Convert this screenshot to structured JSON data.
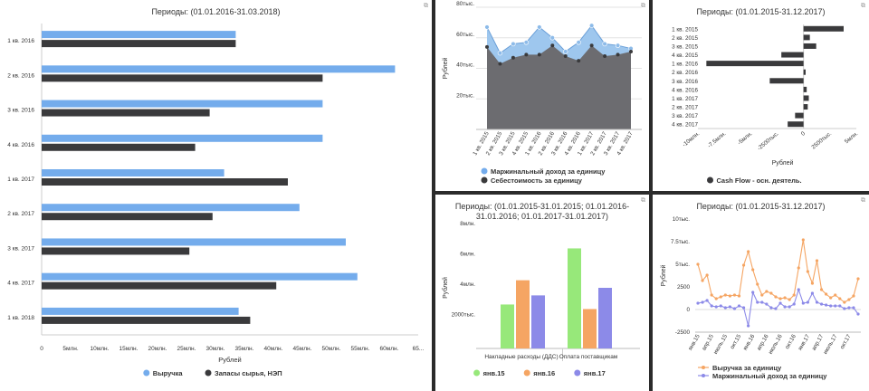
{
  "colors": {
    "blue": "#74acec",
    "dark": "#3a3a3c",
    "area_light": "#9ec7ee",
    "area_dark": "#6c6c70",
    "green": "#97e87a",
    "orange": "#f5a563",
    "purple": "#8c8ae8",
    "line_orange": "#f5a563",
    "line_purple": "#8c8ae8",
    "icon": "expand-icon"
  },
  "chart_data": [
    {
      "id": "c1",
      "type": "bar",
      "orientation": "horizontal",
      "title": "Периоды: (01.01.2016-31.03.2018)",
      "xlabel": "Рублей",
      "ylabel": "",
      "xlim": [
        0,
        65
      ],
      "xticks": [
        "0",
        "5млн.",
        "10млн.",
        "15млн.",
        "20млн.",
        "25млн.",
        "30млн.",
        "35млн.",
        "40млн.",
        "45млн.",
        "50млн.",
        "55млн.",
        "60млн.",
        "65..."
      ],
      "categories": [
        "1 кв. 2016",
        "2 кв. 2016",
        "3 кв. 2016",
        "4 кв. 2016",
        "1 кв. 2017",
        "2 кв. 2017",
        "3 кв. 2017",
        "4 кв. 2017",
        "1 кв. 2018"
      ],
      "series": [
        {
          "name": "Выручка",
          "values": [
            33.5,
            61,
            48.5,
            48.5,
            31.5,
            44.5,
            52.5,
            54.5,
            34
          ]
        },
        {
          "name": "Запасы сырья, НЭП",
          "values": [
            33.5,
            48.5,
            29,
            26.5,
            42.5,
            29.5,
            25.5,
            40.5,
            36
          ]
        }
      ],
      "legend": "bottom"
    },
    {
      "id": "c2",
      "type": "area",
      "title": "",
      "ylabel": "Рублей",
      "xlabel": "",
      "ylim": [
        0,
        80
      ],
      "yticks": [
        {
          "v": 20,
          "t": "20тыс."
        },
        {
          "v": 40,
          "t": "40тыс."
        },
        {
          "v": 60,
          "t": "60тыс."
        },
        {
          "v": 80,
          "t": "80тыс."
        }
      ],
      "categories": [
        "1 кв. 2015",
        "2 кв. 2015",
        "3 кв. 2015",
        "4 кв. 2015",
        "1 кв. 2016",
        "2 кв. 2016",
        "3 кв. 2016",
        "4 кв. 2016",
        "1 кв. 2017",
        "2 кв. 2017",
        "3 кв. 2017",
        "4 кв. 2017"
      ],
      "series": [
        {
          "name": "Маржинальный доход за единицу",
          "values": [
            67,
            50,
            56,
            57,
            67,
            60,
            51,
            57,
            68,
            56,
            55,
            53
          ]
        },
        {
          "name": "Себестоимость за единицу",
          "values": [
            54,
            43,
            47,
            49,
            49,
            55,
            48,
            45,
            55,
            48,
            49,
            51
          ]
        }
      ],
      "legend": "bottom"
    },
    {
      "id": "c3",
      "type": "bar",
      "orientation": "horizontal",
      "title": "Периоды: (01.01.2015-31.12.2017)",
      "xlabel": "Рублей",
      "ylabel": "",
      "xlim": [
        -10,
        5
      ],
      "xticks": [
        {
          "v": -10,
          "t": "-10млн."
        },
        {
          "v": -7.5,
          "t": "-7.5млн."
        },
        {
          "v": -5,
          "t": "-5млн."
        },
        {
          "v": -2.5,
          "t": "-2500тыс."
        },
        {
          "v": 0,
          "t": "0"
        },
        {
          "v": 2.5,
          "t": "2500тыс."
        },
        {
          "v": 5,
          "t": "5млн."
        }
      ],
      "categories": [
        "1 кв. 2015",
        "2 кв. 2015",
        "3 кв. 2015",
        "4 кв. 2015",
        "1 кв. 2016",
        "2 кв. 2016",
        "3 кв. 2016",
        "4 кв. 2016",
        "1 кв. 2017",
        "2 кв. 2017",
        "3 кв. 2017",
        "4 кв. 2017"
      ],
      "series": [
        {
          "name": "Cash Flow - осн. деятель.",
          "values": [
            3.8,
            0.6,
            1.2,
            -2.1,
            -9.2,
            0.2,
            -3.2,
            0.3,
            0.5,
            0.4,
            -0.8,
            -1.5
          ]
        }
      ],
      "legend": "bottom"
    },
    {
      "id": "c4",
      "type": "bar",
      "title": "Периоды: (01.01.2015-31.01.2015; 01.01.2016-31.01.2016; 01.01.2017-31.01.2017)",
      "ylabel": "Рублей",
      "xlabel": "",
      "ylim": [
        0,
        8
      ],
      "yticks": [
        {
          "v": 2,
          "t": "2000тыс."
        },
        {
          "v": 4,
          "t": "4млн."
        },
        {
          "v": 6,
          "t": "6млн."
        },
        {
          "v": 8,
          "t": "8млн."
        }
      ],
      "categories": [
        "Накладные расходы (ДДС)",
        "Оплата поставщикам"
      ],
      "series": [
        {
          "name": "янв.15",
          "values": [
            2.9,
            6.6
          ]
        },
        {
          "name": "янв.16",
          "values": [
            4.5,
            2.6
          ]
        },
        {
          "name": "янв.17",
          "values": [
            3.5,
            4.0
          ]
        }
      ],
      "legend": "bottom"
    },
    {
      "id": "c5",
      "type": "line",
      "title": "Периоды: (01.01.2015-31.12.2017)",
      "ylabel": "Рублей",
      "xlabel": "",
      "ylim": [
        -2.5,
        10
      ],
      "yticks": [
        {
          "v": -2.5,
          "t": "-2500"
        },
        {
          "v": 0,
          "t": "0"
        },
        {
          "v": 2.5,
          "t": "2500"
        },
        {
          "v": 5,
          "t": "5тыс."
        },
        {
          "v": 7.5,
          "t": "7.5тыс."
        },
        {
          "v": 10,
          "t": "10тыс."
        }
      ],
      "xticks": [
        {
          "i": 0,
          "t": "янв.15"
        },
        {
          "i": 3,
          "t": "апр.15"
        },
        {
          "i": 6,
          "t": "июль.15"
        },
        {
          "i": 9,
          "t": "окт.15"
        },
        {
          "i": 12,
          "t": "янв.16"
        },
        {
          "i": 15,
          "t": "апр.16"
        },
        {
          "i": 18,
          "t": "июль.16"
        },
        {
          "i": 21,
          "t": "окт.16"
        },
        {
          "i": 24,
          "t": "янв.17"
        },
        {
          "i": 27,
          "t": "апр.17"
        },
        {
          "i": 30,
          "t": "июль.17"
        },
        {
          "i": 33,
          "t": "окт.17"
        }
      ],
      "series": [
        {
          "name": "Выручка за единицу",
          "values": [
            5.0,
            3.2,
            3.8,
            1.6,
            1.2,
            1.4,
            1.6,
            1.5,
            1.6,
            1.5,
            4.9,
            6.4,
            4.4,
            2.8,
            1.6,
            2.0,
            1.8,
            1.4,
            1.2,
            1.3,
            1.1,
            1.6,
            4.6,
            7.7,
            4.2,
            2.9,
            5.4,
            2.2,
            1.7,
            1.3,
            1.6,
            1.2,
            0.8,
            1.1,
            1.5,
            3.4
          ]
        },
        {
          "name": "Маржинальный доход за единицу",
          "values": [
            0.7,
            0.8,
            1.0,
            0.4,
            0.3,
            0.4,
            0.2,
            0.3,
            0.1,
            0.4,
            0.2,
            -1.8,
            1.9,
            0.8,
            0.8,
            0.6,
            0.2,
            0.1,
            0.7,
            0.3,
            0.3,
            0.6,
            2.2,
            0.7,
            0.8,
            1.8,
            0.8,
            0.6,
            0.5,
            0.4,
            0.4,
            0.4,
            0.1,
            0.2,
            0.2,
            -0.5
          ]
        }
      ],
      "legend": "bottom"
    }
  ]
}
